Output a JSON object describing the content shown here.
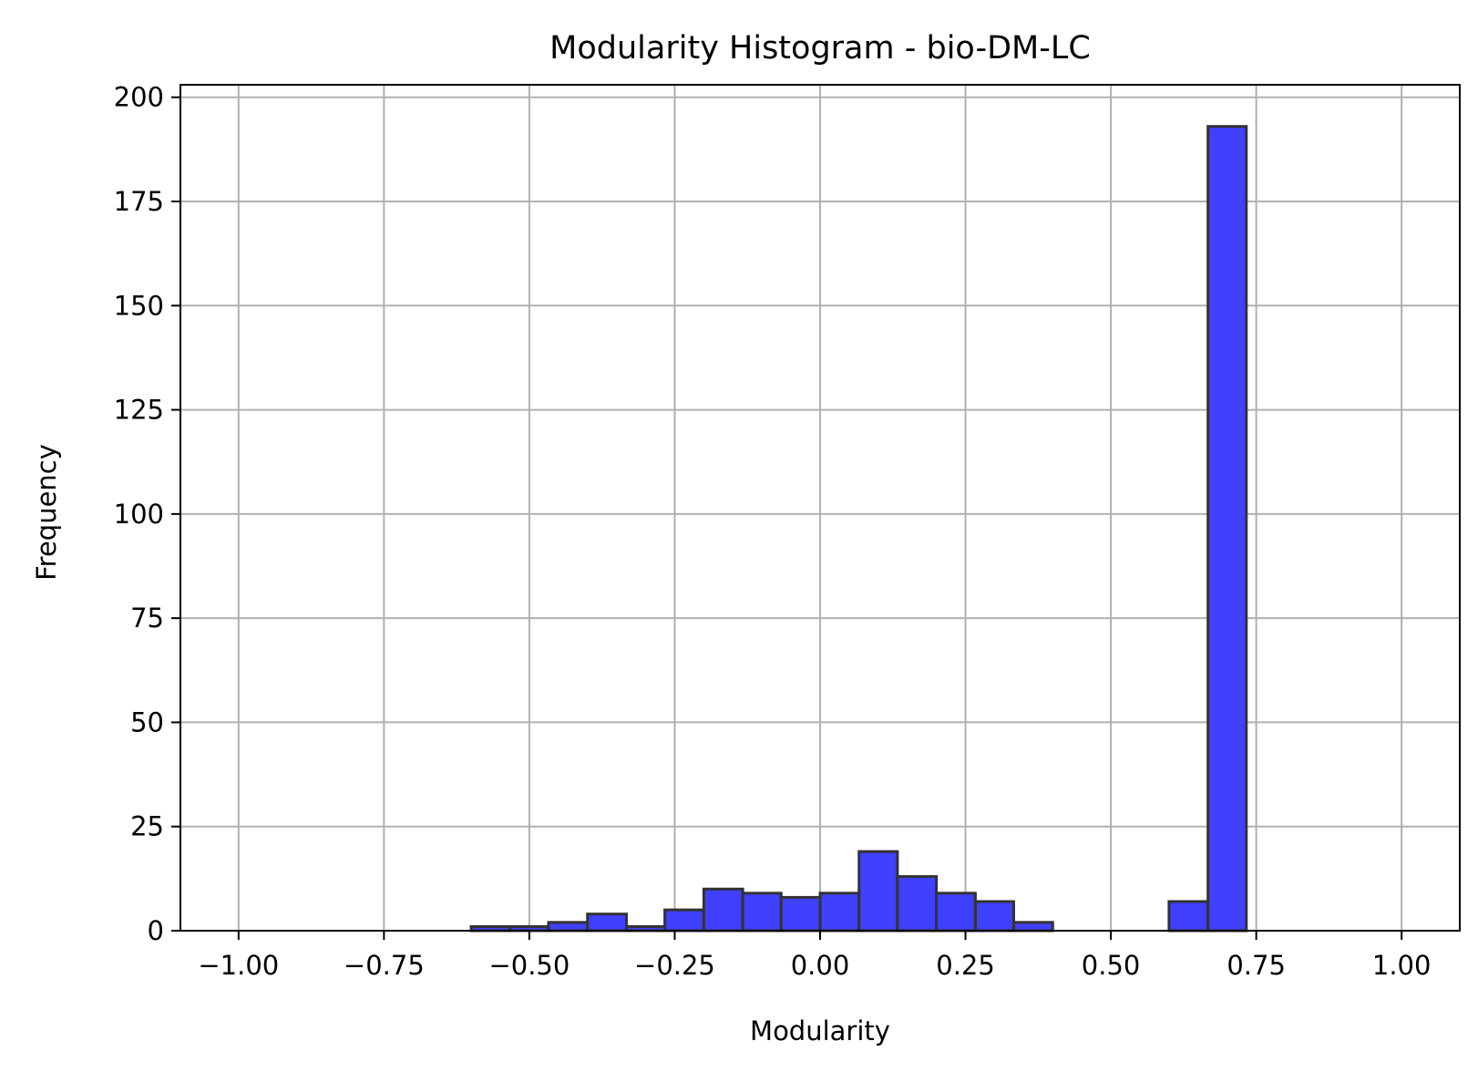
{
  "chart_data": {
    "type": "bar",
    "title": "Modularity Histogram - bio-DM-LC",
    "xlabel": "Modularity",
    "ylabel": "Frequency",
    "xlim": [
      -1.1,
      1.1
    ],
    "ylim": [
      0,
      203
    ],
    "grid": true,
    "x_ticks": [
      -1.0,
      -0.75,
      -0.5,
      -0.25,
      0.0,
      0.25,
      0.5,
      0.75,
      1.0
    ],
    "x_tick_labels": [
      "−1.00",
      "−0.75",
      "−0.50",
      "−0.25",
      "0.00",
      "0.25",
      "0.50",
      "0.75",
      "1.00"
    ],
    "y_ticks": [
      0,
      25,
      50,
      75,
      100,
      125,
      150,
      175,
      200
    ],
    "y_tick_labels": [
      "0",
      "25",
      "50",
      "75",
      "100",
      "125",
      "150",
      "175",
      "200"
    ],
    "bin_edges": [
      -0.6,
      -0.533,
      -0.467,
      -0.4,
      -0.333,
      -0.267,
      -0.2,
      -0.133,
      -0.067,
      0.0,
      0.067,
      0.133,
      0.2,
      0.267,
      0.333,
      0.4,
      0.467,
      0.533,
      0.6,
      0.667,
      0.733
    ],
    "values": [
      1,
      1,
      2,
      4,
      1,
      5,
      10,
      9,
      8,
      9,
      19,
      13,
      9,
      7,
      2,
      0,
      0,
      0,
      7,
      193
    ],
    "bar_color": "#4040ff",
    "edge_color": "#333333",
    "grid_color": "#b0b0b0"
  }
}
